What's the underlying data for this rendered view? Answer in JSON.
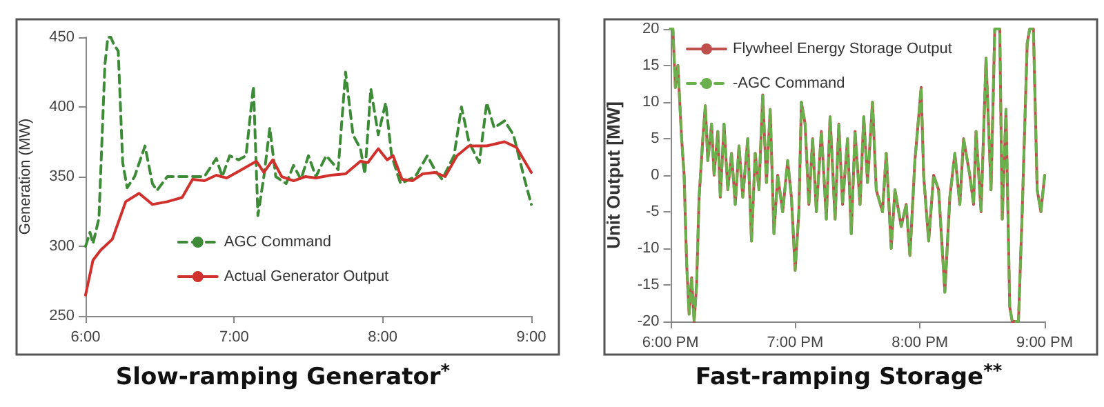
{
  "chart_data": [
    {
      "type": "line",
      "title": "Slow-ramping Generator$^{*}$",
      "ylabel": "Generation (MW)",
      "xlim": [
        6,
        9
      ],
      "xticks": [
        {
          "value": 6,
          "label": "6:00"
        },
        {
          "value": 7,
          "label": "7:00"
        },
        {
          "value": 8,
          "label": "8:00"
        },
        {
          "value": 9,
          "label": "9:00"
        }
      ],
      "ylim": [
        250,
        450
      ],
      "yticks": [
        250,
        300,
        350,
        400,
        450
      ],
      "grid": false,
      "legend": "bottom",
      "marker": "none",
      "series": [
        {
          "name": "AGC Command",
          "color": "#3d8b37",
          "line_style": "dashed",
          "x": [
            6.0,
            6.03,
            6.05,
            6.09,
            6.13,
            6.15,
            6.17,
            6.19,
            6.22,
            6.25,
            6.28,
            6.33,
            6.4,
            6.45,
            6.48,
            6.55,
            6.65,
            6.75,
            6.8,
            6.88,
            6.92,
            6.97,
            7.03,
            7.08,
            7.13,
            7.16,
            7.2,
            7.24,
            7.28,
            7.35,
            7.4,
            7.45,
            7.5,
            7.55,
            7.62,
            7.7,
            7.75,
            7.8,
            7.85,
            7.88,
            7.92,
            7.97,
            8.02,
            8.06,
            8.12,
            8.22,
            8.3,
            8.35,
            8.4,
            8.48,
            8.53,
            8.58,
            8.65,
            8.7,
            8.75,
            8.82,
            8.88,
            8.95,
            9.0
          ],
          "values": [
            300,
            310,
            302,
            320,
            430,
            450,
            450,
            445,
            440,
            360,
            342,
            350,
            372,
            345,
            340,
            350,
            350,
            350,
            350,
            363,
            350,
            365,
            362,
            365,
            415,
            322,
            350,
            385,
            350,
            345,
            358,
            348,
            365,
            350,
            365,
            355,
            425,
            380,
            370,
            352,
            413,
            380,
            403,
            365,
            345,
            350,
            365,
            355,
            348,
            365,
            400,
            375,
            360,
            403,
            385,
            390,
            380,
            350,
            330
          ]
        },
        {
          "name": "Actual Generator Output",
          "color": "#d0312d",
          "line_style": "solid",
          "x": [
            6.0,
            6.05,
            6.1,
            6.18,
            6.27,
            6.36,
            6.45,
            6.55,
            6.65,
            6.72,
            6.8,
            6.88,
            6.95,
            7.05,
            7.15,
            7.2,
            7.26,
            7.32,
            7.4,
            7.48,
            7.55,
            7.65,
            7.75,
            7.85,
            7.9,
            7.97,
            8.03,
            8.07,
            8.13,
            8.2,
            8.27,
            8.35,
            8.42,
            8.5,
            8.58,
            8.7,
            8.82,
            8.9,
            9.0
          ],
          "values": [
            265,
            290,
            297,
            305,
            332,
            338,
            330,
            332,
            335,
            348,
            347,
            351,
            349,
            355,
            361,
            353,
            362,
            350,
            347,
            350,
            349,
            351,
            352,
            361,
            360,
            370,
            362,
            365,
            348,
            347,
            352,
            353,
            350,
            365,
            372,
            372,
            375,
            371,
            353
          ]
        }
      ]
    },
    {
      "type": "line",
      "title": "Fast-ramping Storage$^{**}$",
      "ylabel": "Unit Output [MW]",
      "xlim": [
        18,
        21
      ],
      "xticks": [
        {
          "value": 18,
          "label": "6:00 PM"
        },
        {
          "value": 19,
          "label": "7:00 PM"
        },
        {
          "value": 20,
          "label": "8:00 PM"
        },
        {
          "value": 21,
          "label": "9:00 PM"
        }
      ],
      "ylim": [
        -20,
        20
      ],
      "yticks": [
        -20,
        -15,
        -10,
        -5,
        0,
        5,
        10,
        15,
        20
      ],
      "grid": false,
      "legend": "top left",
      "marker": "none",
      "series": [
        {
          "name": "Flywheel Energy Storage Output",
          "color": "#c0504d",
          "line_style": "solid",
          "x": [
            18.0,
            18.02,
            18.04,
            18.06,
            18.09,
            18.11,
            18.13,
            18.15,
            18.17,
            18.19,
            18.21,
            18.23,
            18.26,
            18.28,
            18.3,
            18.33,
            18.35,
            18.38,
            18.4,
            18.43,
            18.46,
            18.49,
            18.52,
            18.55,
            18.58,
            18.62,
            18.65,
            18.68,
            18.71,
            18.74,
            18.77,
            18.8,
            18.83,
            18.86,
            18.9,
            18.94,
            18.97,
            19.0,
            19.03,
            19.05,
            19.08,
            19.11,
            19.14,
            19.17,
            19.21,
            19.25,
            19.28,
            19.32,
            19.35,
            19.38,
            19.42,
            19.45,
            19.48,
            19.52,
            19.55,
            19.58,
            19.62,
            19.65,
            19.7,
            19.73,
            19.77,
            19.8,
            19.85,
            19.89,
            19.92,
            19.96,
            20.01,
            20.03,
            20.07,
            20.11,
            20.15,
            20.2,
            20.24,
            20.28,
            20.32,
            20.35,
            20.4,
            20.43,
            20.45,
            20.49,
            20.53,
            20.57,
            20.6,
            20.64,
            20.66,
            20.69,
            20.72,
            20.74,
            20.79,
            20.82,
            20.86,
            20.88,
            20.91,
            20.94,
            20.97,
            21.0
          ],
          "values": [
            20,
            20,
            12,
            15,
            5,
            0,
            -12,
            -19,
            -14,
            -20,
            -15,
            -3,
            5,
            9.5,
            2,
            7,
            0,
            6,
            -3,
            7,
            -2,
            3,
            -4,
            4,
            -3,
            5,
            -9,
            3,
            -2,
            11,
            -1,
            9,
            -8,
            0,
            -5,
            2,
            -3,
            -13,
            -5,
            10,
            7,
            -4,
            5,
            -5,
            6,
            -6,
            8,
            -6,
            7,
            -4,
            5,
            -8,
            6,
            -4,
            8,
            -1,
            10,
            -2,
            -5,
            3,
            -10,
            -2,
            -7,
            -4,
            -11,
            2,
            12,
            0,
            -9,
            0,
            -2,
            -16,
            -3,
            3,
            -4,
            5,
            0,
            -4,
            6,
            -5,
            16,
            -2,
            20,
            20,
            -6,
            9,
            -18,
            -20,
            -20,
            -5,
            18,
            20,
            20,
            -2,
            -5,
            0
          ]
        },
        {
          "name": "-AGC Command",
          "color": "#6ab04c",
          "line_style": "dashed",
          "x": [
            18.0,
            18.02,
            18.04,
            18.06,
            18.09,
            18.11,
            18.13,
            18.15,
            18.17,
            18.19,
            18.21,
            18.23,
            18.26,
            18.28,
            18.3,
            18.33,
            18.35,
            18.38,
            18.4,
            18.43,
            18.46,
            18.49,
            18.52,
            18.55,
            18.58,
            18.62,
            18.65,
            18.68,
            18.71,
            18.74,
            18.77,
            18.8,
            18.83,
            18.86,
            18.9,
            18.94,
            18.97,
            19.0,
            19.03,
            19.05,
            19.08,
            19.11,
            19.14,
            19.17,
            19.21,
            19.25,
            19.28,
            19.32,
            19.35,
            19.38,
            19.42,
            19.45,
            19.48,
            19.52,
            19.55,
            19.58,
            19.62,
            19.65,
            19.7,
            19.73,
            19.77,
            19.8,
            19.85,
            19.89,
            19.92,
            19.96,
            20.01,
            20.03,
            20.07,
            20.11,
            20.15,
            20.2,
            20.24,
            20.28,
            20.32,
            20.35,
            20.4,
            20.43,
            20.45,
            20.49,
            20.53,
            20.57,
            20.6,
            20.64,
            20.66,
            20.69,
            20.72,
            20.74,
            20.79,
            20.82,
            20.86,
            20.88,
            20.91,
            20.94,
            20.97,
            21.0
          ],
          "values": [
            20,
            20,
            12,
            15,
            5,
            0,
            -12,
            -19,
            -14,
            -20,
            -15,
            -3,
            5,
            9.5,
            2,
            7,
            0,
            6,
            -3,
            7,
            -2,
            3,
            -4,
            4,
            -3,
            5,
            -9,
            3,
            -2,
            11,
            -1,
            9,
            -8,
            0,
            -5,
            2,
            -3,
            -13,
            -5,
            10,
            7,
            -4,
            5,
            -5,
            6,
            -6,
            8,
            -6,
            7,
            -4,
            5,
            -8,
            6,
            -4,
            8,
            -1,
            10,
            -2,
            -5,
            3,
            -10,
            -2,
            -7,
            -4,
            -11,
            2,
            12,
            0,
            -9,
            0,
            -2,
            -16,
            -3,
            3,
            -4,
            5,
            0,
            -4,
            6,
            -5,
            16,
            -2,
            20,
            20,
            -6,
            9,
            -18,
            -20,
            -20,
            -5,
            18,
            20,
            20,
            -2,
            -5,
            0
          ]
        }
      ]
    }
  ]
}
